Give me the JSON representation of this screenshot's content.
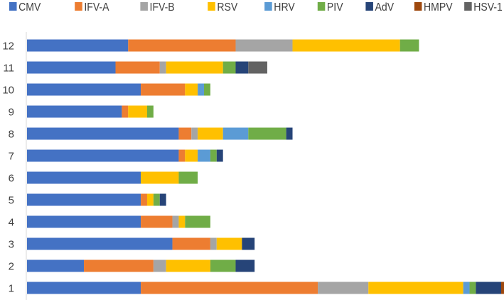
{
  "chart_data": {
    "type": "bar",
    "orientation": "horizontal",
    "stacked": true,
    "title": "",
    "xlabel": "",
    "ylabel": "",
    "categories": [
      "1",
      "2",
      "3",
      "4",
      "5",
      "6",
      "7",
      "8",
      "9",
      "10",
      "11",
      "12"
    ],
    "xlim": [
      0,
      75
    ],
    "grid": false,
    "legend_position": "top",
    "colors": {
      "CMV": "#4472C4",
      "IFV-A": "#ED7D31",
      "IFV-B": "#A5A5A5",
      "RSV": "#FFC000",
      "HRV": "#5B9BD5",
      "PIV": "#70AD47",
      "AdV": "#264478",
      "HMPV": "#9E480E",
      "HSV-1": "#636363"
    },
    "series": [
      {
        "name": "CMV",
        "values": [
          18,
          9,
          23,
          18,
          18,
          18,
          24,
          24,
          15,
          18,
          14,
          16
        ]
      },
      {
        "name": "IFV-A",
        "values": [
          28,
          11,
          6,
          5,
          1,
          0,
          1,
          2,
          1,
          7,
          7,
          17
        ]
      },
      {
        "name": "IFV-B",
        "values": [
          8,
          2,
          1,
          1,
          0,
          0,
          0,
          1,
          0,
          0,
          1,
          9
        ]
      },
      {
        "name": "RSV",
        "values": [
          15,
          7,
          4,
          1,
          1,
          6,
          2,
          4,
          3,
          2,
          9,
          17
        ]
      },
      {
        "name": "HRV",
        "values": [
          1,
          0,
          0,
          0,
          0,
          0,
          2,
          4,
          0,
          1,
          0,
          0
        ]
      },
      {
        "name": "PIV",
        "values": [
          1,
          4,
          0,
          4,
          1,
          3,
          1,
          6,
          1,
          1,
          2,
          3
        ]
      },
      {
        "name": "AdV",
        "values": [
          4,
          3,
          2,
          0,
          1,
          0,
          1,
          1,
          0,
          0,
          2,
          0
        ]
      },
      {
        "name": "HMPV",
        "values": [
          1,
          0,
          0,
          0,
          0,
          0,
          0,
          0,
          0,
          0,
          0,
          0
        ]
      },
      {
        "name": "HSV-1",
        "values": [
          0,
          0,
          0,
          0,
          0,
          0,
          0,
          0,
          0,
          0,
          3,
          0
        ]
      }
    ]
  }
}
